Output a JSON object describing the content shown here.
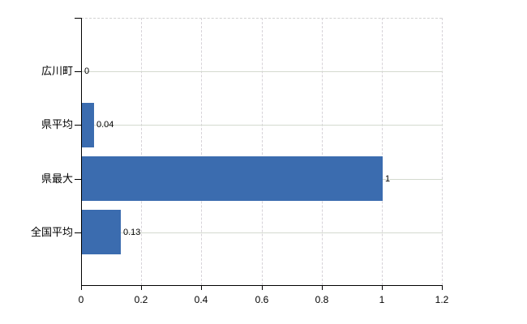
{
  "chart_data": {
    "type": "bar",
    "orientation": "horizontal",
    "title": "",
    "xlabel": "",
    "ylabel": "",
    "categories": [
      "広川町",
      "県平均",
      "県最大",
      "全国平均"
    ],
    "values": [
      0,
      0.04,
      1,
      0.13
    ],
    "value_labels": [
      "0",
      "0.04",
      "1",
      "0.13"
    ],
    "xlim": [
      0,
      1.2
    ],
    "xticks": [
      0,
      0.2,
      0.4,
      0.6,
      0.8,
      1,
      1.2
    ],
    "xtick_labels": [
      "0",
      "0.2",
      "0.4",
      "0.6",
      "0.8",
      "1",
      "1.2"
    ],
    "grid": "on",
    "legend": "none",
    "colors": {
      "bar": "#3b6caf",
      "axis": "#000000",
      "h_gridline": "#d4dacf",
      "v_gridline": "#d6d2d8",
      "text": "#000000",
      "background": "#ffffff"
    }
  }
}
